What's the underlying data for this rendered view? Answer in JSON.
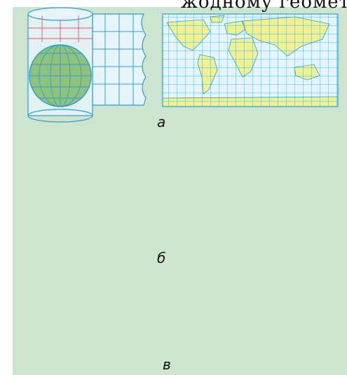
{
  "caption": {
    "text": "жодному геометр"
  },
  "labels": {
    "a": "а",
    "b": "б",
    "v": "в"
  },
  "colors": {
    "panel": "#cde5cf",
    "grid": "#2a9fd6",
    "paper": "#e8f4fb",
    "land": "#f4f08a",
    "globe": "#8fc27a",
    "red": "#d9557a"
  },
  "projections": [
    {
      "label_key": "a",
      "kind": "cylindrical"
    },
    {
      "label_key": "b",
      "kind": "conic"
    },
    {
      "label_key": "v",
      "kind": "azimuthal"
    }
  ]
}
